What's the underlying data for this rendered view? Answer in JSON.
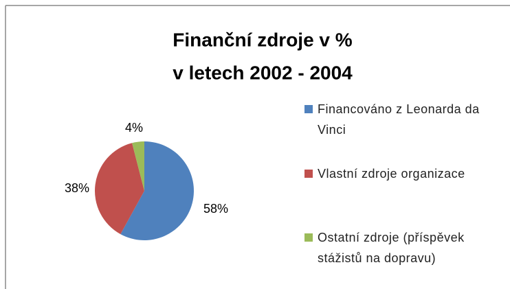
{
  "chart_data": {
    "type": "pie",
    "title": [
      "Finanční zdroje  v %",
      "v letech 2002 - 2004"
    ],
    "categories": [
      "Financováno z Leonarda da Vinci",
      "Vlastní zdroje organizace",
      "Ostatní zdroje (příspěvek stážistů na dopravu)"
    ],
    "values": [
      58,
      38,
      4
    ],
    "value_labels": [
      "58%",
      "38%",
      "4%"
    ],
    "colors": [
      "#4f81bd",
      "#c0504d",
      "#9bbb59"
    ],
    "legend": "right"
  }
}
